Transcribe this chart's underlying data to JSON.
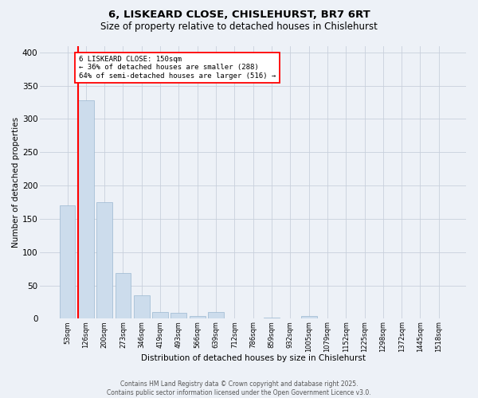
{
  "title_line1": "6, LISKEARD CLOSE, CHISLEHURST, BR7 6RT",
  "title_line2": "Size of property relative to detached houses in Chislehurst",
  "xlabel": "Distribution of detached houses by size in Chislehurst",
  "ylabel": "Number of detached properties",
  "bar_labels": [
    "53sqm",
    "126sqm",
    "200sqm",
    "273sqm",
    "346sqm",
    "419sqm",
    "493sqm",
    "566sqm",
    "639sqm",
    "712sqm",
    "786sqm",
    "859sqm",
    "932sqm",
    "1005sqm",
    "1079sqm",
    "1152sqm",
    "1225sqm",
    "1298sqm",
    "1372sqm",
    "1445sqm",
    "1518sqm"
  ],
  "bar_values": [
    170,
    328,
    175,
    68,
    35,
    10,
    9,
    4,
    10,
    0,
    0,
    1,
    0,
    4,
    0,
    0,
    0,
    0,
    0,
    0,
    0
  ],
  "bar_color": "#ccdcec",
  "bar_edge_color": "#9ab8d0",
  "vline_color": "red",
  "annotation_text": "6 LISKEARD CLOSE: 150sqm\n← 36% of detached houses are smaller (288)\n64% of semi-detached houses are larger (516) →",
  "annotation_box_color": "white",
  "annotation_border_color": "red",
  "ylim": [
    0,
    410
  ],
  "yticks": [
    0,
    50,
    100,
    150,
    200,
    250,
    300,
    350,
    400
  ],
  "background_color": "#edf1f7",
  "grid_color": "#c8d0dc",
  "footer_text": "Contains HM Land Registry data © Crown copyright and database right 2025.\nContains public sector information licensed under the Open Government Licence v3.0."
}
